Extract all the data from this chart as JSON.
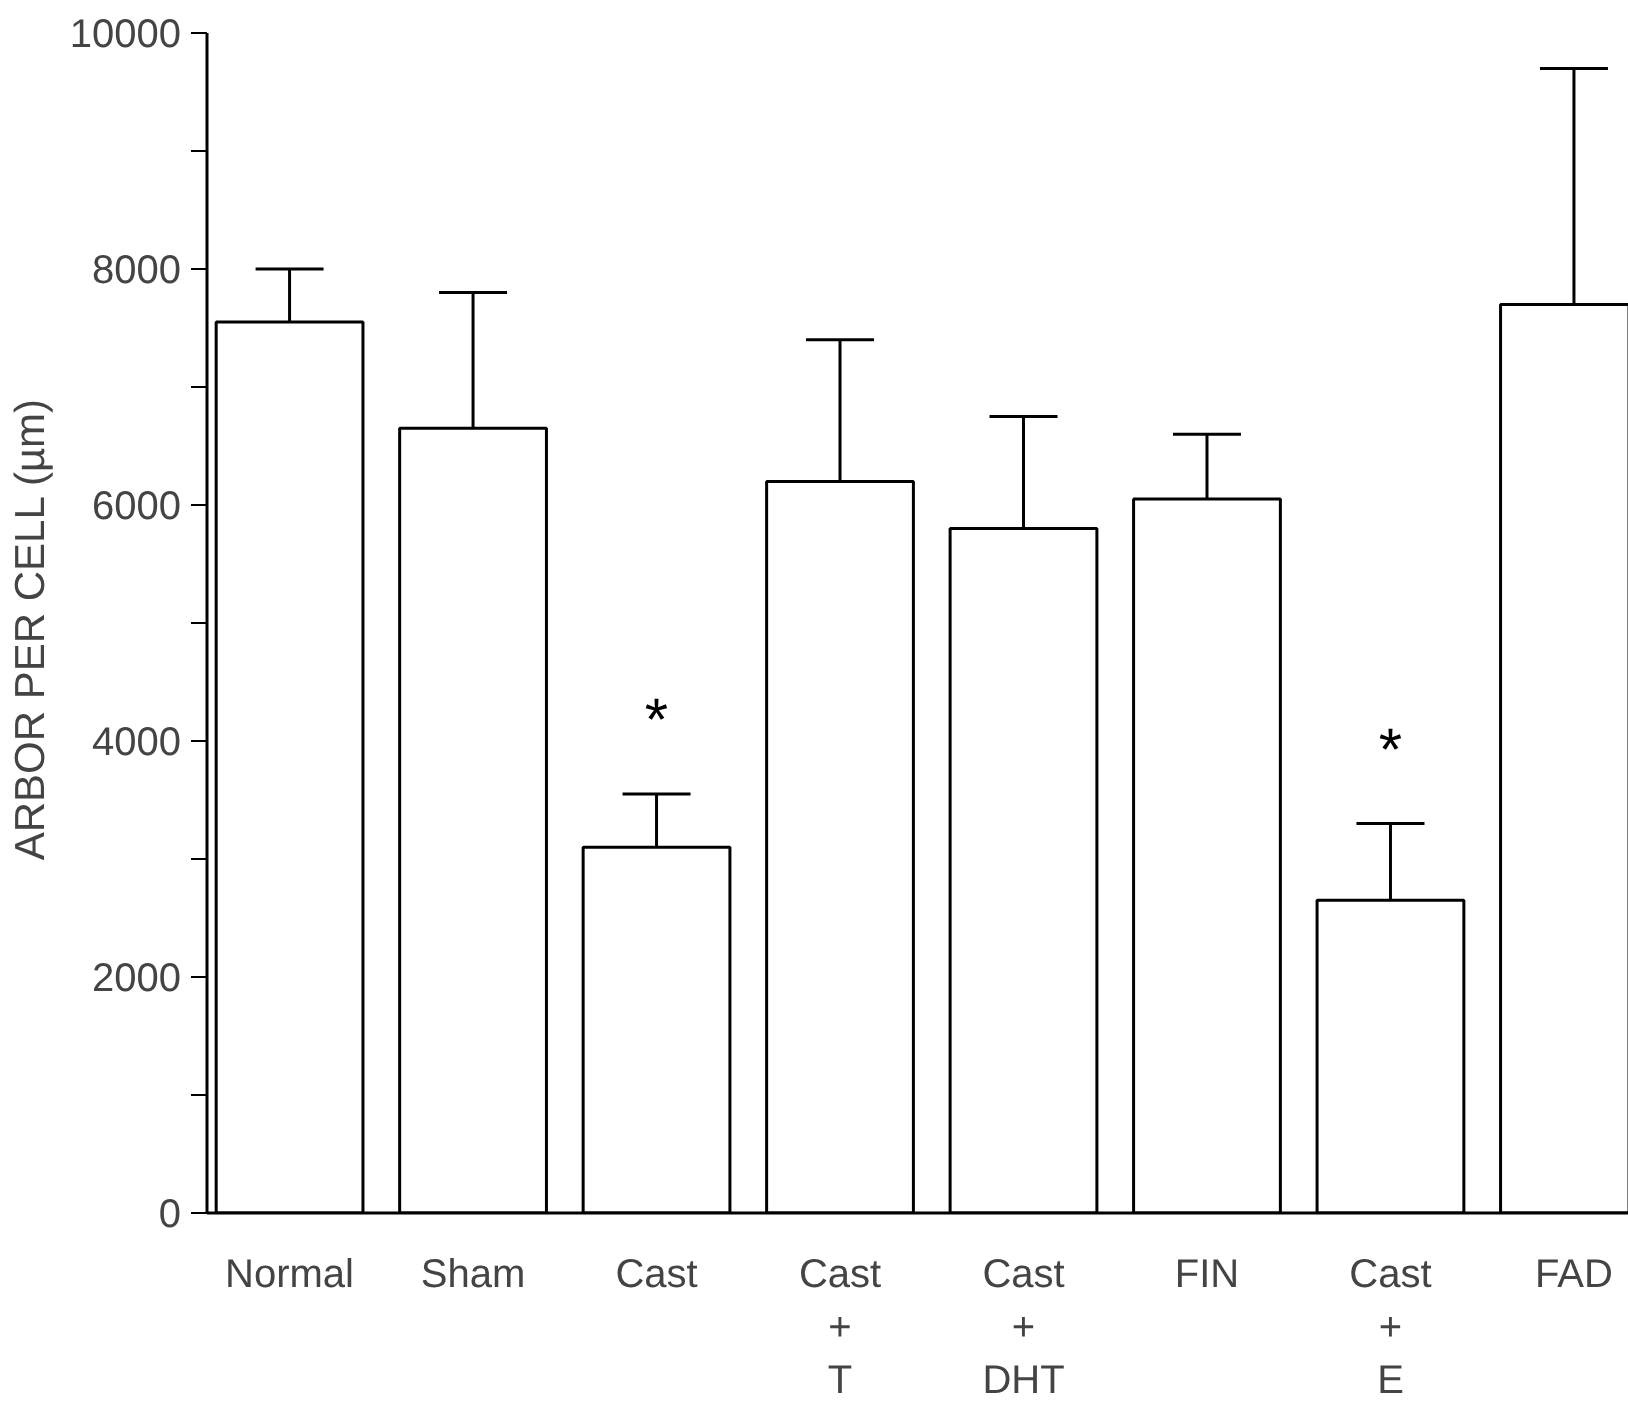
{
  "chart_data": {
    "type": "bar",
    "ylabel": "ARBOR PER CELL  (µm)",
    "categories": [
      "Normal",
      "Sham",
      "Cast",
      "Cast\n+\nT",
      "Cast\n+\nDHT",
      "FIN",
      "Cast\n+\nE",
      "FAD"
    ],
    "values": [
      7550,
      6650,
      3100,
      6200,
      5800,
      6050,
      2650,
      7700
    ],
    "errors": [
      [
        7550,
        8000
      ],
      [
        6650,
        7800
      ],
      [
        3100,
        3550
      ],
      [
        6200,
        7400
      ],
      [
        5800,
        6750
      ],
      [
        6050,
        6600
      ],
      [
        2650,
        3300
      ],
      [
        7700,
        9700
      ]
    ],
    "color": "#ffffff",
    "ylim": [
      0,
      10000
    ],
    "yticks": [
      0,
      {
        "value": 1000,
        "label": null
      },
      2000,
      {
        "value": 3000,
        "label": null
      },
      4000,
      {
        "value": 5000,
        "label": null
      },
      6000,
      {
        "value": 7000,
        "label": null
      },
      8000,
      {
        "value": 9000,
        "label": null
      },
      10000
    ],
    "annotations": [
      "*",
      "*"
    ],
    "grid": false
  }
}
